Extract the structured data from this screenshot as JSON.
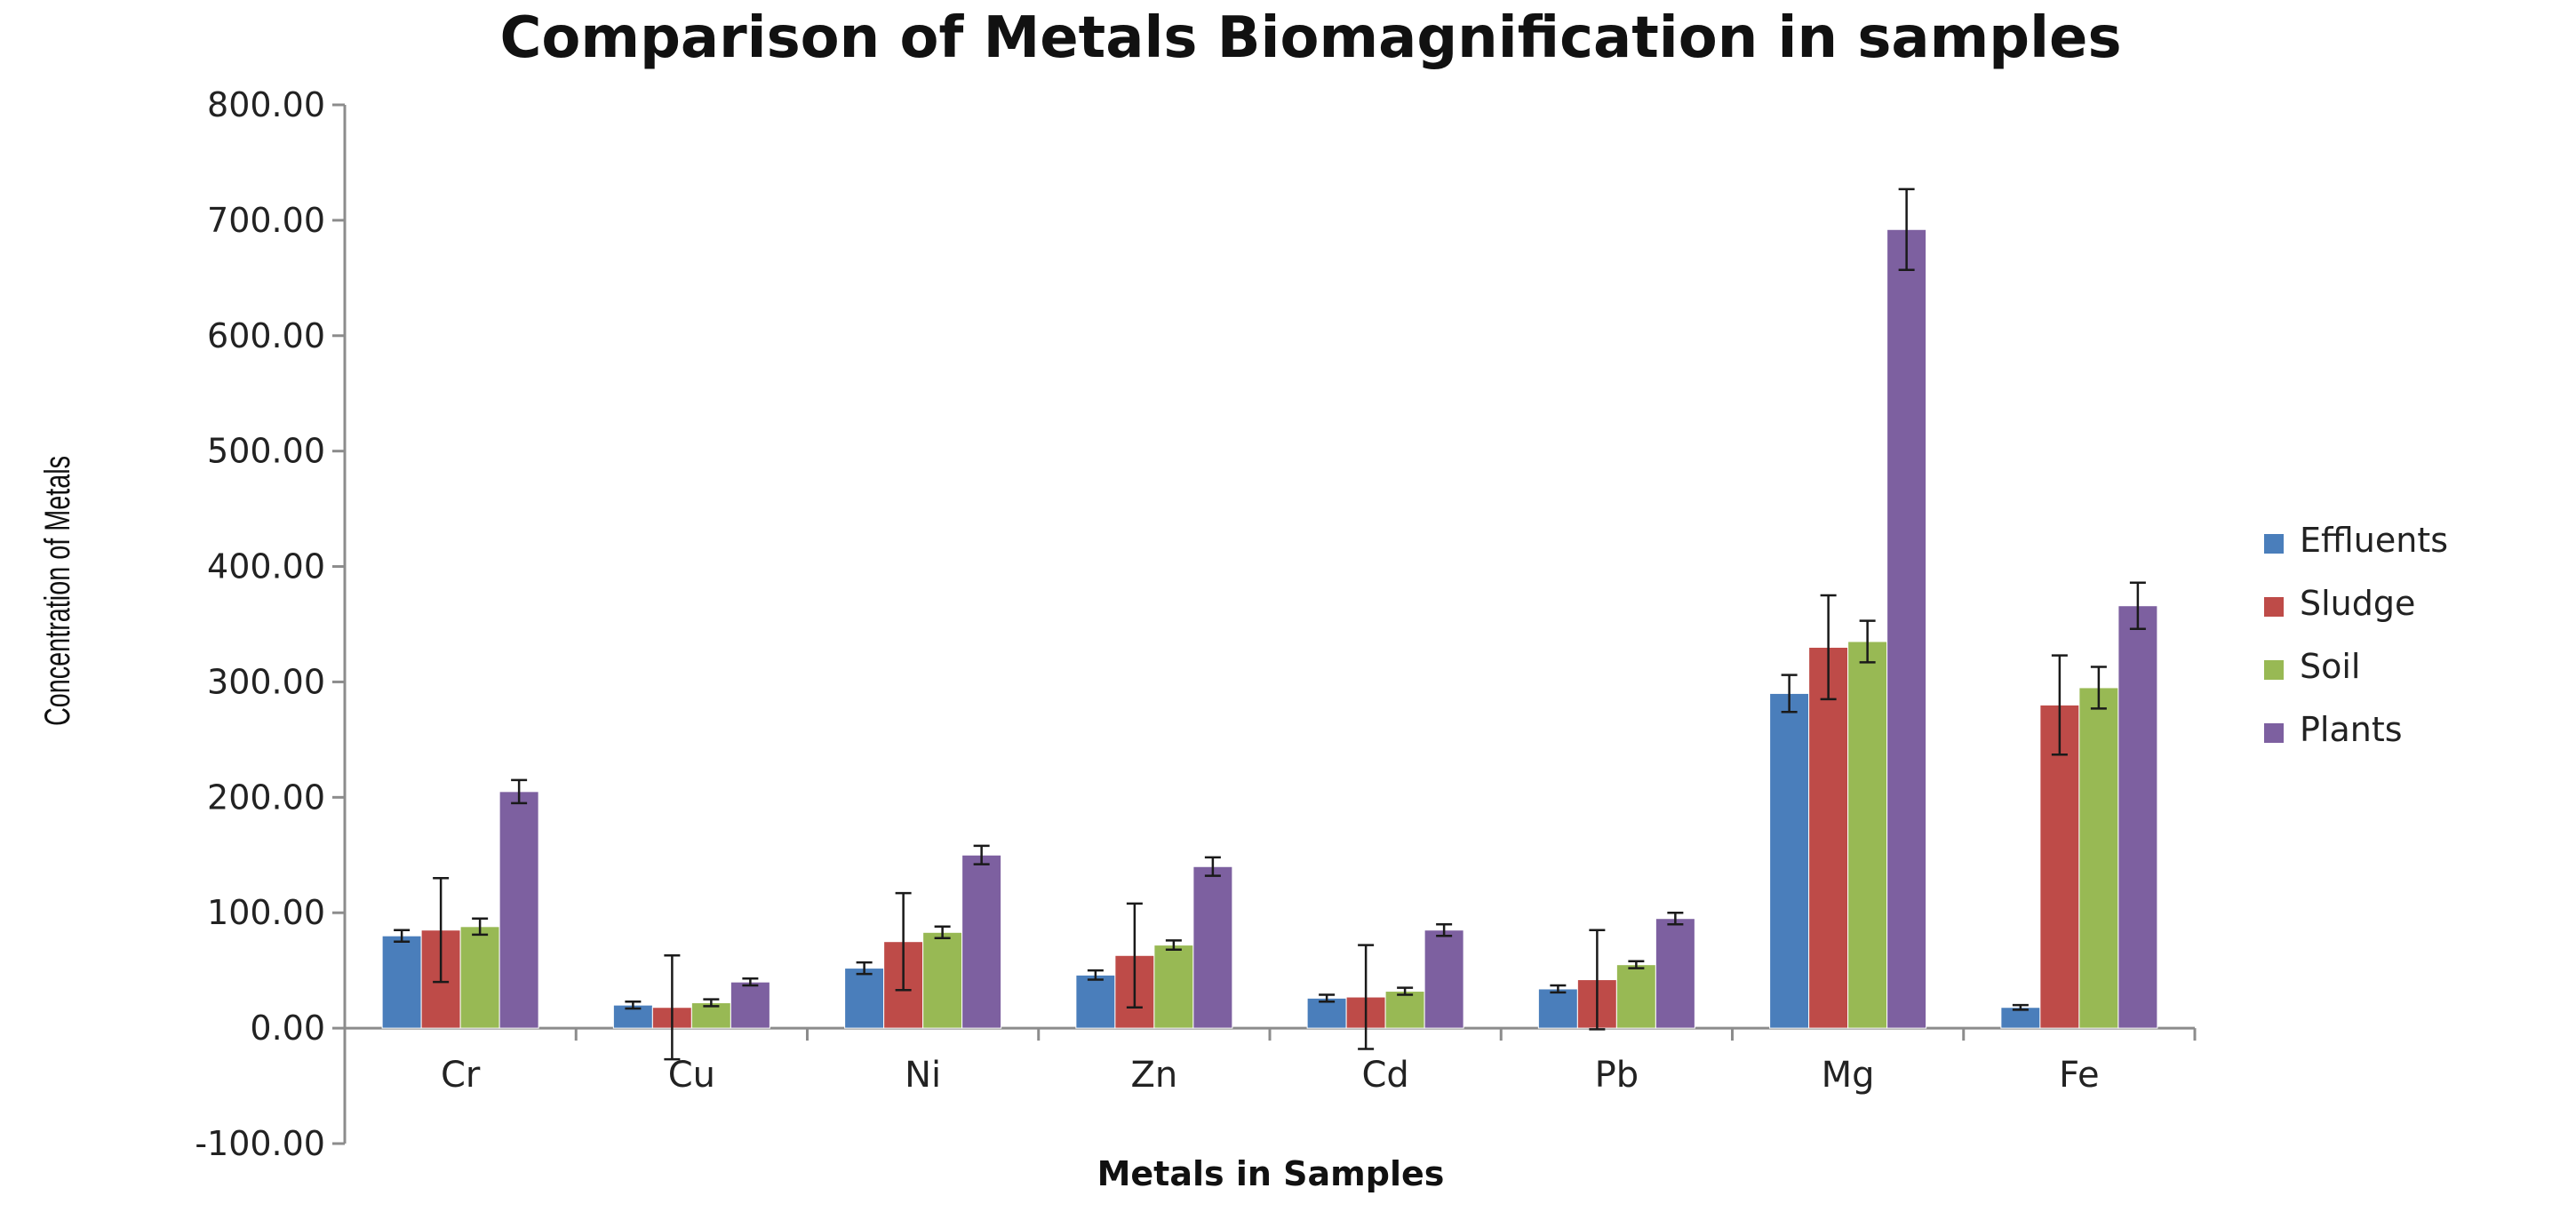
{
  "chart_data": {
    "type": "bar",
    "title": "Comparison of Metals Biomagnification in samples",
    "xlabel": "Metals in Samples",
    "ylabel": "Concentration of Metals",
    "ylim": [
      -100,
      800
    ],
    "ytick_step": 100,
    "ytick_labels": [
      "-100.00",
      "0.00",
      "100.00",
      "200.00",
      "300.00",
      "400.00",
      "500.00",
      "600.00",
      "700.00",
      "800.00"
    ],
    "categories": [
      "Cr",
      "Cu",
      "Ni",
      "Zn",
      "Cd",
      "Pb",
      "Mg",
      "Fe"
    ],
    "series": [
      {
        "name": "Effluents",
        "color": "#4a7ebb",
        "values": [
          80,
          20,
          52,
          46,
          26,
          34,
          290,
          18
        ],
        "errors": [
          5,
          3,
          5,
          4,
          3,
          3,
          16,
          2
        ]
      },
      {
        "name": "Sludge",
        "color": "#be4b48",
        "values": [
          85,
          18,
          75,
          63,
          27,
          42,
          330,
          280
        ],
        "errors": [
          45,
          45,
          42,
          45,
          45,
          43,
          45,
          43
        ]
      },
      {
        "name": "Soil",
        "color": "#98b954",
        "values": [
          88,
          22,
          83,
          72,
          32,
          55,
          335,
          295
        ],
        "errors": [
          7,
          3,
          5,
          4,
          3,
          3,
          18,
          18
        ]
      },
      {
        "name": "Plants",
        "color": "#7d60a0",
        "values": [
          205,
          40,
          150,
          140,
          85,
          95,
          692,
          366
        ],
        "errors": [
          10,
          3,
          8,
          8,
          5,
          5,
          35,
          20
        ]
      }
    ],
    "legend_position": "right",
    "grid": false
  }
}
